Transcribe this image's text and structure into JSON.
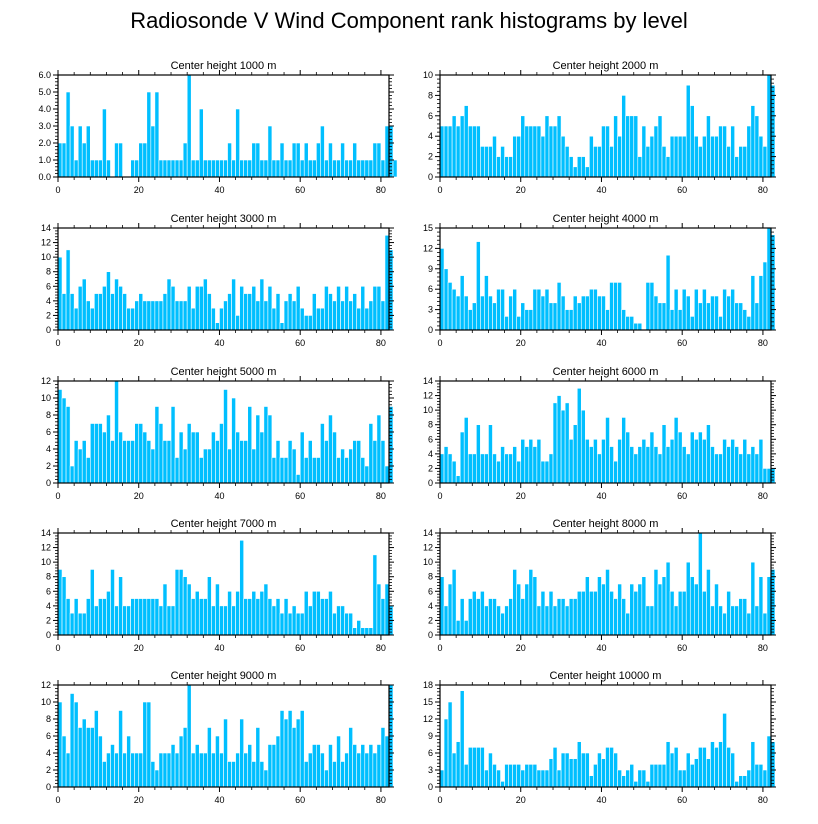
{
  "title": "Radiosonde V Wind Component rank histograms by level",
  "bar_color": "#00bfff",
  "chart_data": [
    {
      "type": "bar",
      "title": "Center height 1000 m",
      "x_ticks": [
        0,
        20,
        40,
        60,
        80
      ],
      "xlim": [
        0,
        82
      ],
      "ylim": [
        0,
        6
      ],
      "y_ticks": [
        "0.0",
        "1.0",
        "2.0",
        "3.0",
        "4.0",
        "5.0",
        "6.0"
      ],
      "values": [
        2,
        2,
        5,
        3,
        1,
        3,
        2,
        3,
        1,
        1,
        1,
        4,
        1,
        0,
        2,
        2,
        0,
        0,
        1,
        1,
        2,
        2,
        5,
        3,
        5,
        1,
        1,
        1,
        1,
        1,
        1,
        2,
        6,
        1,
        1,
        4,
        1,
        1,
        1,
        1,
        1,
        1,
        2,
        1,
        4,
        1,
        1,
        1,
        2,
        2,
        1,
        1,
        3,
        1,
        1,
        2,
        1,
        1,
        2,
        2,
        1,
        2,
        1,
        1,
        2,
        3,
        1,
        2,
        1,
        1,
        2,
        1,
        1,
        2,
        1,
        1,
        1,
        1,
        2,
        2,
        1,
        3,
        3,
        1
      ]
    },
    {
      "type": "bar",
      "title": "Center height 2000 m",
      "x_ticks": [
        0,
        20,
        40,
        60,
        80
      ],
      "xlim": [
        0,
        82
      ],
      "ylim": [
        0,
        10
      ],
      "y_ticks": [
        "0",
        "2",
        "4",
        "6",
        "8",
        "10"
      ],
      "values": [
        5,
        5,
        5,
        6,
        5,
        6,
        7,
        5,
        5,
        5,
        3,
        3,
        3,
        4,
        2,
        3,
        2,
        2,
        4,
        4,
        6,
        5,
        5,
        5,
        5,
        4,
        6,
        5,
        5,
        6,
        4,
        3,
        2,
        1,
        2,
        2,
        1,
        4,
        3,
        3,
        5,
        5,
        3,
        6,
        4,
        8,
        6,
        6,
        6,
        2,
        5,
        3,
        4,
        5,
        6,
        3,
        2,
        4,
        4,
        4,
        4,
        9,
        7,
        4,
        3,
        4,
        6,
        4,
        4,
        5,
        5,
        3,
        5,
        2,
        3,
        3,
        5,
        7,
        6,
        4,
        3,
        10,
        9
      ]
    },
    {
      "type": "bar",
      "title": "Center height 3000 m",
      "x_ticks": [
        0,
        20,
        40,
        60,
        80
      ],
      "xlim": [
        0,
        82
      ],
      "ylim": [
        0,
        14
      ],
      "y_ticks": [
        "0",
        "2",
        "4",
        "6",
        "8",
        "10",
        "12",
        "14"
      ],
      "values": [
        10,
        5,
        11,
        5,
        3,
        6,
        7,
        4,
        3,
        5,
        5,
        6,
        8,
        5,
        7,
        6,
        5,
        3,
        3,
        4,
        5,
        4,
        4,
        4,
        4,
        4,
        5,
        7,
        6,
        4,
        4,
        4,
        6,
        3,
        6,
        6,
        7,
        5,
        3,
        1,
        3,
        4,
        5,
        7,
        2,
        6,
        5,
        5,
        6,
        4,
        7,
        4,
        6,
        3,
        5,
        1,
        4,
        5,
        4,
        6,
        3,
        2,
        2,
        5,
        3,
        3,
        6,
        5,
        4,
        6,
        4,
        6,
        4,
        5,
        3,
        6,
        3,
        4,
        6,
        6,
        4,
        13,
        11
      ]
    },
    {
      "type": "bar",
      "title": "Center height 4000 m",
      "x_ticks": [
        0,
        20,
        40,
        60,
        80
      ],
      "xlim": [
        0,
        82
      ],
      "ylim": [
        0,
        15
      ],
      "y_ticks": [
        "0",
        "3",
        "6",
        "9",
        "12",
        "15"
      ],
      "values": [
        12,
        9,
        7,
        6,
        5,
        8,
        5,
        3,
        4,
        13,
        5,
        8,
        5,
        4,
        6,
        6,
        2,
        5,
        6,
        2,
        4,
        3,
        3,
        6,
        6,
        5,
        6,
        4,
        4,
        7,
        5,
        3,
        3,
        5,
        4,
        5,
        5,
        6,
        6,
        5,
        5,
        3,
        7,
        7,
        7,
        3,
        2,
        2,
        1,
        1,
        0,
        7,
        7,
        5,
        4,
        4,
        11,
        3,
        6,
        3,
        6,
        5,
        2,
        6,
        4,
        6,
        4,
        5,
        5,
        2,
        6,
        5,
        6,
        4,
        4,
        3,
        2,
        8,
        4,
        8,
        10,
        15,
        14
      ]
    },
    {
      "type": "bar",
      "title": "Center height 5000 m",
      "x_ticks": [
        0,
        20,
        40,
        60,
        80
      ],
      "xlim": [
        0,
        82
      ],
      "ylim": [
        0,
        12
      ],
      "y_ticks": [
        "0",
        "2",
        "4",
        "6",
        "8",
        "10",
        "12"
      ],
      "values": [
        11,
        10,
        9,
        2,
        5,
        4,
        5,
        3,
        7,
        7,
        7,
        6,
        8,
        5,
        12,
        6,
        5,
        5,
        5,
        7,
        7,
        6,
        5,
        4,
        9,
        7,
        5,
        5,
        9,
        3,
        6,
        4,
        7,
        6,
        6,
        3,
        4,
        4,
        6,
        5,
        7,
        11,
        4,
        10,
        6,
        5,
        5,
        9,
        4,
        8,
        6,
        9,
        8,
        3,
        5,
        3,
        3,
        5,
        4,
        1,
        6,
        3,
        5,
        3,
        3,
        7,
        5,
        8,
        6,
        3,
        4,
        3,
        4,
        5,
        5,
        3,
        2,
        7,
        5,
        8,
        5,
        2,
        9
      ]
    },
    {
      "type": "bar",
      "title": "Center height 6000 m",
      "x_ticks": [
        0,
        20,
        40,
        60,
        80
      ],
      "xlim": [
        0,
        82
      ],
      "ylim": [
        0,
        14
      ],
      "y_ticks": [
        "0",
        "2",
        "4",
        "6",
        "8",
        "10",
        "12",
        "14"
      ],
      "values": [
        4,
        5,
        4,
        3,
        1,
        7,
        9,
        4,
        4,
        8,
        4,
        4,
        8,
        4,
        3,
        5,
        4,
        4,
        5,
        3,
        6,
        5,
        6,
        5,
        6,
        3,
        3,
        4,
        11,
        12,
        10,
        11,
        6,
        8,
        13,
        10,
        6,
        5,
        6,
        4,
        6,
        9,
        5,
        3,
        6,
        9,
        7,
        5,
        4,
        5,
        6,
        5,
        7,
        5,
        4,
        8,
        5,
        6,
        9,
        7,
        5,
        4,
        7,
        6,
        7,
        6,
        8,
        5,
        4,
        4,
        6,
        5,
        6,
        5,
        4,
        6,
        4,
        5,
        4,
        6,
        2,
        2,
        2
      ]
    },
    {
      "type": "bar",
      "title": "Center height 7000 m",
      "x_ticks": [
        0,
        20,
        40,
        60,
        80
      ],
      "xlim": [
        0,
        82
      ],
      "ylim": [
        0,
        14
      ],
      "y_ticks": [
        "0",
        "2",
        "4",
        "6",
        "8",
        "10",
        "12",
        "14"
      ],
      "values": [
        9,
        8,
        5,
        3,
        5,
        3,
        3,
        5,
        9,
        4,
        5,
        5,
        6,
        9,
        4,
        8,
        4,
        4,
        5,
        5,
        5,
        5,
        5,
        5,
        5,
        4,
        7,
        4,
        4,
        9,
        9,
        8,
        7,
        5,
        6,
        5,
        5,
        8,
        4,
        7,
        4,
        4,
        6,
        4,
        6,
        13,
        5,
        5,
        6,
        5,
        6,
        7,
        5,
        4,
        5,
        3,
        5,
        3,
        4,
        3,
        3,
        6,
        4,
        6,
        6,
        5,
        5,
        6,
        3,
        4,
        4,
        3,
        3,
        1,
        2,
        1,
        1,
        1,
        11,
        7,
        5,
        7,
        4
      ]
    },
    {
      "type": "bar",
      "title": "Center height 8000 m",
      "x_ticks": [
        0,
        20,
        40,
        60,
        80
      ],
      "xlim": [
        0,
        82
      ],
      "ylim": [
        0,
        14
      ],
      "y_ticks": [
        "0",
        "2",
        "4",
        "6",
        "8",
        "10",
        "12",
        "14"
      ],
      "values": [
        8,
        4,
        7,
        9,
        2,
        5,
        2,
        5,
        6,
        5,
        6,
        4,
        5,
        5,
        4,
        3,
        4,
        5,
        9,
        7,
        5,
        7,
        9,
        8,
        4,
        6,
        4,
        6,
        4,
        5,
        5,
        4,
        5,
        5,
        6,
        6,
        8,
        6,
        6,
        8,
        7,
        9,
        6,
        5,
        7,
        5,
        3,
        7,
        6,
        7,
        8,
        4,
        4,
        9,
        7,
        8,
        10,
        6,
        4,
        6,
        6,
        10,
        8,
        7,
        14,
        6,
        9,
        4,
        7,
        4,
        3,
        6,
        4,
        4,
        5,
        5,
        3,
        10,
        4,
        8,
        3,
        8,
        9
      ]
    },
    {
      "type": "bar",
      "title": "Center height 9000 m",
      "x_ticks": [
        0,
        20,
        40,
        60,
        80
      ],
      "xlim": [
        0,
        82
      ],
      "ylim": [
        0,
        12
      ],
      "y_ticks": [
        "0",
        "2",
        "4",
        "6",
        "8",
        "10",
        "12"
      ],
      "values": [
        10,
        6,
        4,
        11,
        10,
        7,
        8,
        7,
        7,
        9,
        6,
        3,
        4,
        5,
        4,
        9,
        4,
        6,
        4,
        4,
        4,
        10,
        10,
        3,
        2,
        4,
        4,
        4,
        5,
        4,
        6,
        7,
        12,
        4,
        5,
        4,
        4,
        7,
        4,
        6,
        4,
        8,
        3,
        3,
        4,
        8,
        4,
        5,
        3,
        7,
        3,
        2,
        5,
        5,
        6,
        9,
        8,
        9,
        7,
        8,
        9,
        3,
        4,
        5,
        5,
        4,
        2,
        5,
        3,
        6,
        3,
        4,
        7,
        5,
        4,
        5,
        4,
        5,
        4,
        5,
        7,
        6,
        12
      ]
    },
    {
      "type": "bar",
      "title": "Center height 10000 m",
      "x_ticks": [
        0,
        20,
        40,
        60,
        80
      ],
      "xlim": [
        0,
        82
      ],
      "ylim": [
        0,
        18
      ],
      "y_ticks": [
        "0",
        "3",
        "6",
        "9",
        "12",
        "15",
        "18"
      ],
      "values": [
        3,
        12,
        15,
        6,
        8,
        17,
        4,
        7,
        7,
        7,
        7,
        3,
        6,
        4,
        3,
        1,
        4,
        4,
        4,
        4,
        3,
        4,
        4,
        4,
        3,
        3,
        3,
        5,
        7,
        3,
        6,
        6,
        5,
        5,
        8,
        6,
        6,
        2,
        4,
        6,
        5,
        7,
        7,
        6,
        3,
        2,
        3,
        4,
        1,
        3,
        3,
        1,
        4,
        4,
        4,
        4,
        8,
        6,
        7,
        3,
        3,
        6,
        4,
        5,
        7,
        7,
        5,
        8,
        7,
        8,
        13,
        7,
        6,
        1,
        2,
        2,
        3,
        8,
        4,
        4,
        3,
        9,
        8
      ]
    }
  ]
}
